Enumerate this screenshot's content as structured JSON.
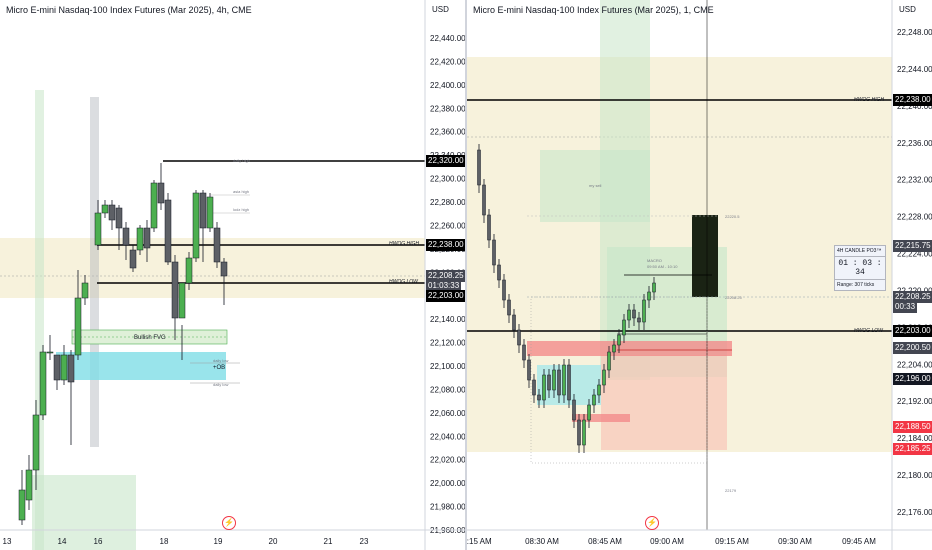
{
  "left_chart": {
    "title": "Micro E-mini Nasdaq-100 Index Futures (Mar 2025), 4h, CME",
    "currency": "USD",
    "price_ticks": [
      "22,440.00",
      "22,420.00",
      "22,400.00",
      "22,380.00",
      "22,360.00",
      "22,340.00",
      "22,300.00",
      "22,280.00",
      "22,260.00",
      "22,220.00",
      "22,180.00",
      "22,160.00",
      "22,140.00",
      "22,120.00",
      "22,100.00",
      "22,080.00",
      "22,060.00",
      "22,040.00",
      "22,020.00",
      "22,000.00",
      "21,980.00",
      "21,960.00"
    ],
    "time_ticks": [
      "13",
      "14",
      "16",
      "18",
      "19",
      "20",
      "21",
      "23"
    ],
    "price_tags": {
      "level_22320": "22,320.00",
      "hwog_high": "22,238.00",
      "current": "22,208.25",
      "countdown": "01:03:33",
      "hwog_low": "22,203.00"
    },
    "line_labels": {
      "hwog_high": "HWOG HIGH",
      "hwog_low": "HWOG LOW"
    },
    "annotations": {
      "asia_high": "asia high",
      "lodz_high": "lodz high",
      "bullish_fvg": "Bullish FVG",
      "plus_ob": "+OB",
      "top_tiny": "daily high",
      "side_tiny1": "daily low",
      "side_tiny2": "daily low"
    }
  },
  "right_chart": {
    "title": "Micro E-mini Nasdaq-100 Index Futures (Mar 2025), 1, CME",
    "currency": "USD",
    "price_ticks": [
      "22,248.00",
      "22,244.00",
      "22,240.00",
      "22,236.00",
      "22,232.00",
      "22,228.00",
      "22,224.00",
      "22,220.00",
      "22,212.00",
      "22,204.00",
      "22,192.00",
      "22,184.00",
      "22,180.00",
      "22,176.00"
    ],
    "time_ticks": [
      "8:15 AM",
      "08:30 AM",
      "08:45 AM",
      "09:00 AM",
      "09:15 AM",
      "09:30 AM",
      "09:45 AM"
    ],
    "price_tags": {
      "hwog_high": "22,238.00",
      "level_22215": "22,215.75",
      "current": "22,208.25",
      "countdown": "00:33",
      "hwog_low": "22,203.00",
      "level_22200": "22,200.50",
      "level_22196": "22,196.00",
      "level_22188": "22,188.50",
      "level_22185": "22,185.25"
    },
    "line_labels": {
      "hwog_high": "HWOG HIGH",
      "hwog_low": "HWOG LOW"
    },
    "annotations": {
      "macro": "MACRO",
      "macro_time": "09:50 AM - 10:10",
      "level_text_top": "22220.5",
      "level_text_mid": "22208.25",
      "level_text_bottom": "22179",
      "my_sell": "my sell"
    },
    "candle_box": {
      "title": "4H CANDLE PO3™",
      "timer": "01 : 03 : 34",
      "range": "Range: 307 ticks"
    }
  },
  "colors": {
    "bull": "#4caf50",
    "bear": "#5d6066",
    "hwog_zone": "#f5f0d6",
    "fvg": "#c8e6c9",
    "ob": "#80deea",
    "red_zone": "#f8a6a6",
    "dark_box": "#1a2314"
  }
}
